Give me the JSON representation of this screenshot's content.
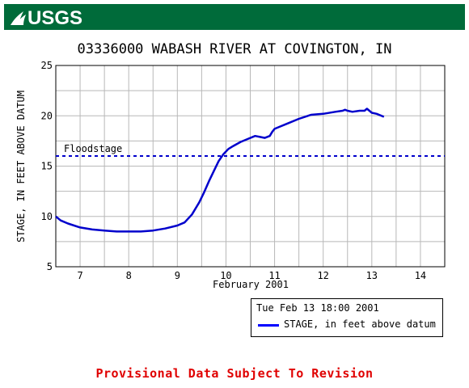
{
  "header": {
    "logo_text": "USGS",
    "brand_color": "#006b3a"
  },
  "chart_data": {
    "type": "line",
    "title": "03336000 WABASH RIVER AT COVINGTON, IN",
    "xlabel": "February 2001",
    "ylabel": "STAGE, IN FEET ABOVE DATUM",
    "xlim": [
      6.5,
      14.5
    ],
    "ylim": [
      5,
      25
    ],
    "x_ticks": [
      7,
      8,
      9,
      10,
      11,
      12,
      13,
      14
    ],
    "x_tick_labels": [
      "7",
      "8",
      "9",
      "10",
      "11",
      "12",
      "13",
      "14"
    ],
    "y_ticks": [
      5,
      10,
      15,
      20,
      25
    ],
    "y_tick_labels": [
      "5",
      "10",
      "15",
      "20",
      "25"
    ],
    "grid": true,
    "legend_position": "below-right",
    "series": [
      {
        "name": "STAGE, in feet above datum",
        "color": "#0000cc",
        "x": [
          6.5,
          6.6,
          6.75,
          7.0,
          7.25,
          7.5,
          7.75,
          8.0,
          8.25,
          8.5,
          8.75,
          9.0,
          9.15,
          9.3,
          9.45,
          9.55,
          9.65,
          9.75,
          9.85,
          9.95,
          10.05,
          10.15,
          10.3,
          10.45,
          10.6,
          10.7,
          10.8,
          10.9,
          10.95,
          11.0,
          11.1,
          11.25,
          11.5,
          11.75,
          12.0,
          12.25,
          12.4,
          12.45,
          12.5,
          12.6,
          12.75,
          12.85,
          12.9,
          13.0,
          13.1,
          13.25
        ],
        "y": [
          10.0,
          9.6,
          9.3,
          8.9,
          8.7,
          8.6,
          8.5,
          8.5,
          8.5,
          8.6,
          8.8,
          9.1,
          9.4,
          10.2,
          11.4,
          12.4,
          13.5,
          14.5,
          15.5,
          16.2,
          16.7,
          17.0,
          17.4,
          17.7,
          18.0,
          17.9,
          17.8,
          18.0,
          18.4,
          18.7,
          18.9,
          19.2,
          19.7,
          20.1,
          20.2,
          20.4,
          20.5,
          20.6,
          20.5,
          20.4,
          20.5,
          20.5,
          20.7,
          20.3,
          20.2,
          19.9
        ]
      }
    ],
    "reference_lines": [
      {
        "label": "Floodstage",
        "y": 16,
        "color": "#0000cc",
        "style": "dashed"
      }
    ]
  },
  "legend": {
    "date_text": "Tue Feb 13 18:00 2001",
    "series_label": "STAGE, in feet above datum"
  },
  "footer": {
    "provisional_text": "Provisional Data Subject To Revision",
    "color": "#e00000"
  }
}
